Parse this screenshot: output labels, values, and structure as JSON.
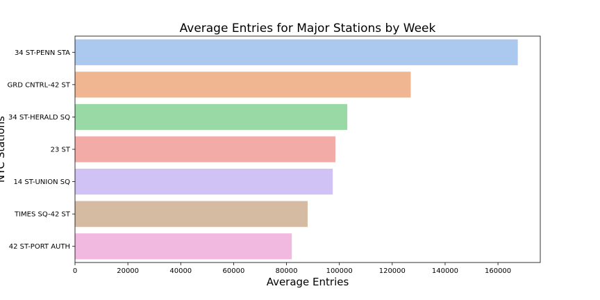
{
  "chart_data": {
    "type": "bar",
    "orientation": "horizontal",
    "title": "Average Entries for Major Stations by Week",
    "xlabel": "Average Entries",
    "ylabel": "NYC Stations",
    "categories": [
      "34 ST-PENN STA",
      "GRD CNTRL-42 ST",
      "34 ST-HERALD SQ",
      "23 ST",
      "14 ST-UNION SQ",
      "TIMES SQ-42 ST",
      "42 ST-PORT AUTH"
    ],
    "values": [
      167500,
      127000,
      103000,
      98500,
      97500,
      88000,
      82000
    ],
    "colors": [
      "#abc9ee",
      "#f0b692",
      "#98d9a6",
      "#f3aba8",
      "#d1c2f6",
      "#d5bba2",
      "#f1b8e0"
    ],
    "xlim": [
      0,
      176000
    ],
    "xticks": [
      0,
      20000,
      40000,
      60000,
      80000,
      100000,
      120000,
      140000,
      160000
    ],
    "grid": false,
    "legend": "none"
  }
}
